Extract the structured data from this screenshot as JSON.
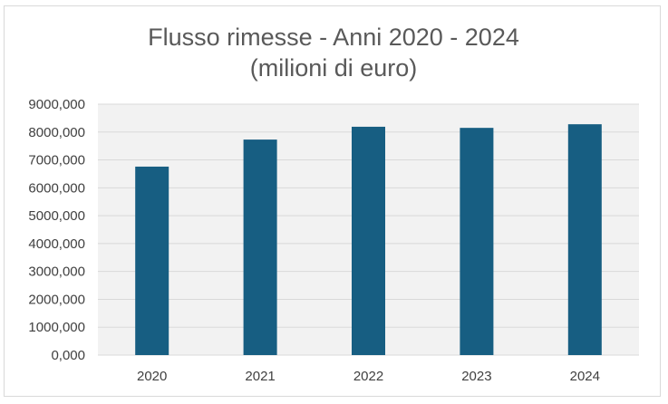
{
  "chart_data": {
    "type": "bar",
    "title": "Flusso rimesse - Anni 2020 - 2024",
    "subtitle": "(milioni di euro)",
    "categories": [
      "2020",
      "2021",
      "2022",
      "2023",
      "2024"
    ],
    "values": [
      6760,
      7730,
      8190,
      8150,
      8280
    ],
    "ylim": [
      0,
      9000
    ],
    "yticks": [
      0,
      1000,
      2000,
      3000,
      4000,
      5000,
      6000,
      7000,
      8000,
      9000
    ],
    "ytick_labels": [
      "0,000",
      "1000,000",
      "2000,000",
      "3000,000",
      "4000,000",
      "5000,000",
      "6000,000",
      "7000,000",
      "8000,000",
      "9000,000"
    ],
    "grid": true,
    "legend": "none",
    "colors": {
      "bar": "#175e82",
      "plot_background": "#f2f2f2",
      "grid": "#d9d9d9",
      "title": "#595959",
      "tick_text": "#404040"
    }
  }
}
